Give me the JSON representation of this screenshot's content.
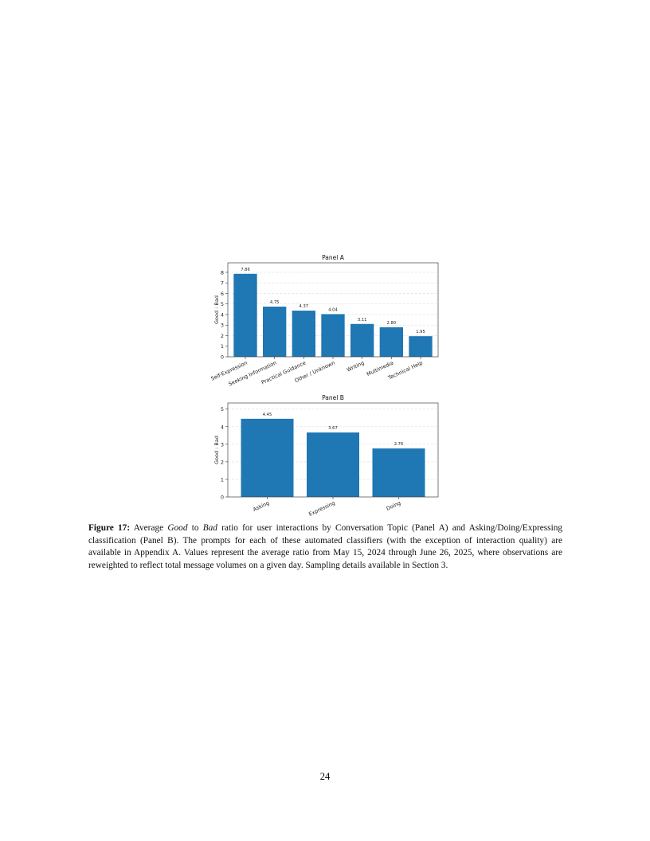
{
  "chart_data": [
    {
      "type": "bar",
      "title": "Panel A",
      "xlabel": "",
      "ylabel": "Good : Bad",
      "categories": [
        "Self-Expression",
        "Seeking Information",
        "Practical Guidance",
        "Other / Unknown",
        "Writing",
        "Multimedia",
        "Technical Help"
      ],
      "values": [
        7.86,
        4.75,
        4.37,
        4.04,
        3.11,
        2.8,
        1.95
      ],
      "data_labels": [
        "7.86",
        "4.75",
        "4.37",
        "4.04",
        "3.11",
        "2.80",
        "1.95"
      ],
      "yticks": [
        0,
        1,
        2,
        3,
        4,
        5,
        6,
        7,
        8
      ],
      "ylim": [
        0,
        8.9
      ],
      "grid": "horizontal dashed",
      "color": "#1f77b4"
    },
    {
      "type": "bar",
      "title": "Panel B",
      "xlabel": "",
      "ylabel": "Good : Bad",
      "categories": [
        "Asking",
        "Expressing",
        "Doing"
      ],
      "values": [
        4.45,
        3.67,
        2.76
      ],
      "data_labels": [
        "4.45",
        "3.67",
        "2.76"
      ],
      "yticks": [
        0,
        1,
        2,
        3,
        4,
        5
      ],
      "ylim": [
        0,
        5.35
      ],
      "grid": "horizontal dashed",
      "color": "#1f77b4"
    }
  ],
  "caption": {
    "label": "Figure 17:",
    "parts": [
      " Average ",
      "Good",
      " to ",
      "Bad",
      " ratio for user interactions by Conversation Topic (Panel A) and Asking/Doing/Expressing classification (Panel B). The prompts for each of these automated classifiers (with the exception of interaction quality) are available in Appendix A. Values represent the average ratio from May 15, 2024 through June 26, 2025, where observations are reweighted to reflect total message volumes on a given day. Sampling details available in Section 3."
    ]
  },
  "page_number": "24"
}
